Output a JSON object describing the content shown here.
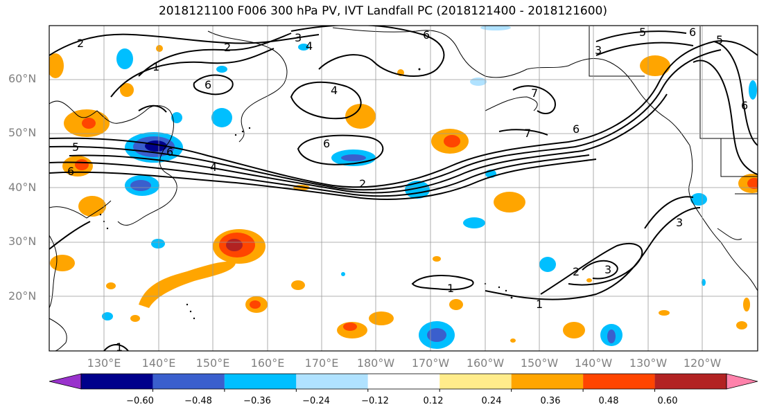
{
  "map": {
    "title": "2018121100 F006 300 hPa PV, IVT Landfall PC (2018121400 - 2018121600)",
    "lat_labels": [
      "60°N",
      "50°N",
      "40°N",
      "30°N",
      "20°N"
    ],
    "lon_labels": [
      "130°E",
      "140°E",
      "150°E",
      "160°E",
      "170°E",
      "180°W",
      "170°W",
      "160°W",
      "150°W",
      "140°W",
      "130°W",
      "120°W"
    ],
    "contour_labels": [
      "2",
      "1",
      "2",
      "3",
      "4",
      "6",
      "4",
      "6",
      "5",
      "3",
      "5",
      "6",
      "6",
      "7",
      "7",
      "6",
      "5",
      "6",
      "4",
      "6",
      "2",
      "1",
      "1",
      "2",
      "3",
      "3",
      "1",
      "6"
    ]
  },
  "colorbar": {
    "tick_labels": [
      "−0.60",
      "−0.48",
      "−0.36",
      "−0.24",
      "−0.12",
      "0.12",
      "0.24",
      "0.36",
      "0.48",
      "0.60"
    ],
    "colors": [
      "#9932CC",
      "#00008B",
      "#3A5FCD",
      "#00BFFF",
      "#B0E2FF",
      "#FFFFFF",
      "#FFEC8B",
      "#FFA500",
      "#FF4500",
      "#B22222",
      "#FF82AB"
    ]
  }
}
